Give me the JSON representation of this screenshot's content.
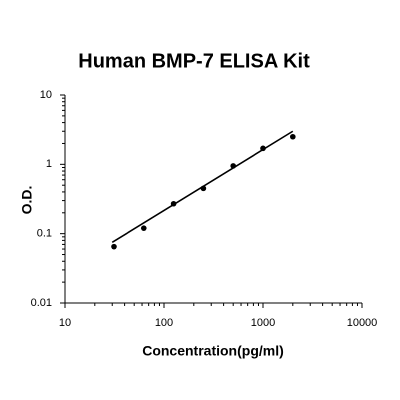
{
  "chart_data": {
    "type": "scatter",
    "title": "Human BMP-7 ELISA Kit",
    "xlabel": "Concentration(pg/ml)",
    "ylabel": "O.D.",
    "xscale": "log",
    "yscale": "log",
    "xlim": [
      10,
      10000
    ],
    "ylim": [
      0.01,
      10
    ],
    "xticks": [
      10,
      100,
      1000,
      10000
    ],
    "yticks": [
      0.01,
      0.1,
      1,
      10
    ],
    "series": [
      {
        "type": "scatter",
        "color": "#000000",
        "x": [
          31.25,
          62.5,
          125,
          250,
          500,
          1000,
          2000
        ],
        "values": [
          0.065,
          0.12,
          0.27,
          0.45,
          0.95,
          1.7,
          2.5
        ]
      },
      {
        "type": "line",
        "color": "#000000",
        "x": [
          30,
          2000
        ],
        "values": [
          0.075,
          3.0
        ]
      }
    ]
  }
}
